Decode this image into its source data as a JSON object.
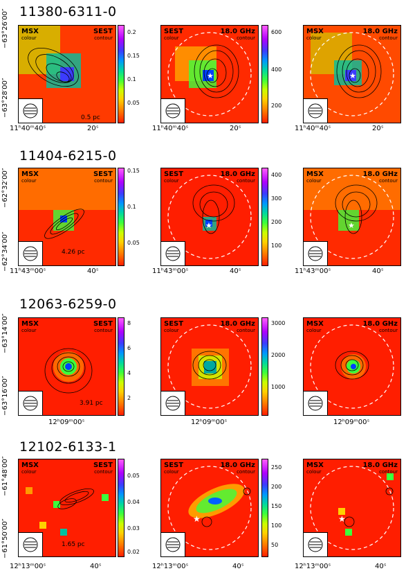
{
  "rows": [
    {
      "title": "11380-6311-0",
      "ytop": "−63°26′00″",
      "ybot": "−63°28′00″",
      "scalebar": "0.5 pc",
      "colorbar": [
        "0.2",
        "0.15",
        "0.1",
        "0.05"
      ],
      "colorbar2": [
        "600",
        "400",
        "200"
      ],
      "xticks": [
        "11ʰ40ᵐ40ˢ",
        "20ˢ"
      ]
    },
    {
      "title": "11404-6215-0",
      "ytop": "−62°32′00″",
      "ybot": "−62°34′00″",
      "scalebar": "4.26 pc",
      "colorbar": [
        "0.15",
        "0.1",
        "0.05"
      ],
      "colorbar2": [
        "400",
        "300",
        "200",
        "100"
      ],
      "xticks": [
        "11ʰ43ᵐ00ˢ",
        "40ˢ"
      ]
    },
    {
      "title": "12063-6259-0",
      "ytop": "−63°14′00″",
      "ybot": "−63°16′00″",
      "scalebar": "3.91 pc",
      "colorbar": [
        "8",
        "6",
        "4",
        "2"
      ],
      "colorbar2": [
        "3000",
        "2000",
        "1000"
      ],
      "xticks": [
        "12ʰ09ᵐ00ˢ"
      ]
    },
    {
      "title": "12102-6133-1",
      "ytop": "−61°48′00″",
      "ybot": "−61°50′00″",
      "scalebar": "1.65 pc",
      "colorbar": [
        "0.05",
        "0.04",
        "0.03",
        "0.02"
      ],
      "colorbar2": [
        "250",
        "200",
        "150",
        "100",
        "50"
      ],
      "xticks": [
        "12ʰ13ᵐ00ˢ",
        "40ˢ"
      ]
    }
  ],
  "labels": {
    "msx": "MSX",
    "sest": "SEST",
    "ghz": "18.0 GHz",
    "colour": "colour",
    "contour": "contour"
  }
}
